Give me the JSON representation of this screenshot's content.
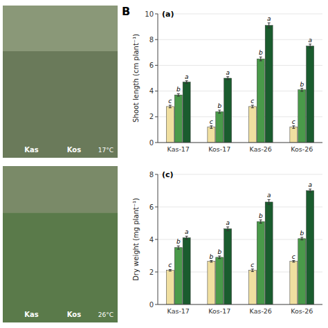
{
  "chart_data": [
    {
      "type": "bar",
      "title": "(a)",
      "ylabel": "Shoot length (cm plant⁻¹)",
      "categories": [
        "Kas-17",
        "Kos-17",
        "Kas-26",
        "Kos-26"
      ],
      "ylim": [
        0,
        10
      ],
      "yticks": [
        0,
        2,
        4,
        6,
        8,
        10
      ],
      "annotations": [
        "B",
        "Kas",
        "Kos",
        "17°C"
      ],
      "series": [
        {
          "color": "#f0dfa0",
          "values": [
            2.8,
            1.2,
            2.8,
            1.2
          ],
          "errors": [
            0.1,
            0.1,
            0.1,
            0.1
          ],
          "labels": [
            "c",
            "c",
            "c",
            "c"
          ]
        },
        {
          "color": "#4a9a4a",
          "values": [
            3.7,
            2.4,
            6.5,
            4.1
          ],
          "errors": [
            0.1,
            0.12,
            0.15,
            0.12
          ],
          "labels": [
            "b",
            "b",
            "b",
            "b"
          ]
        },
        {
          "color": "#1a5c2e",
          "values": [
            4.7,
            5.0,
            9.1,
            7.5
          ],
          "errors": [
            0.1,
            0.12,
            0.2,
            0.15
          ],
          "labels": [
            "a",
            "a",
            "a",
            "a"
          ]
        }
      ]
    },
    {
      "type": "bar",
      "title": "(c)",
      "ylabel": "Dry weight (mg plant⁻¹)",
      "categories": [
        "Kas-17",
        "Kos-17",
        "Kas-26",
        "Kos-26"
      ],
      "ylim": [
        0,
        8
      ],
      "yticks": [
        0,
        2,
        4,
        6,
        8
      ],
      "annotations": [
        "Kas",
        "Kos",
        "26°C"
      ],
      "series": [
        {
          "color": "#f0dfa0",
          "values": [
            2.1,
            2.65,
            2.1,
            2.65
          ],
          "errors": [
            0.05,
            0.05,
            0.08,
            0.05
          ],
          "labels": [
            "c",
            "b",
            "c",
            "c"
          ]
        },
        {
          "color": "#4a9a4a",
          "values": [
            3.5,
            2.9,
            5.1,
            4.05
          ],
          "errors": [
            0.1,
            0.08,
            0.1,
            0.08
          ],
          "labels": [
            "b",
            "b",
            "b",
            "b"
          ]
        },
        {
          "color": "#1a5c2e",
          "values": [
            4.1,
            4.65,
            6.3,
            7.0
          ],
          "errors": [
            0.1,
            0.12,
            0.15,
            0.1
          ],
          "labels": [
            "a",
            "a",
            "a",
            "a"
          ]
        }
      ]
    }
  ]
}
